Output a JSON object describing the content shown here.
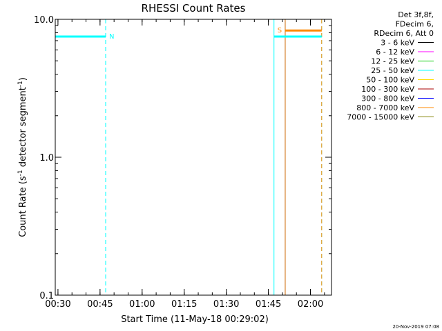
{
  "chart_data": {
    "type": "line",
    "title": "RHESSI Count Rates",
    "xlabel": "Start Time (11-May-18 00:29:02)",
    "ylabel_parts": [
      "Count Rate (s",
      "-1",
      " detector segment",
      "-1",
      ")"
    ],
    "yscale": "log",
    "ylim": [
      0.1,
      10.0
    ],
    "xlim": [
      "00:29:02",
      "02:07:30"
    ],
    "x_ticks": [
      "00:30",
      "00:45",
      "01:00",
      "01:15",
      "01:30",
      "01:45",
      "02:00"
    ],
    "y_ticks": [
      "10.0",
      "1.0",
      "0.1"
    ],
    "legend_position": "top-right",
    "legend_header": [
      "Det 3f,8f,",
      "FDecim 6,",
      "RDecim 6, Att 0"
    ],
    "series": [
      {
        "name": "3 - 6 keV",
        "color": "#000000",
        "segments": []
      },
      {
        "name": "6 - 12 keV",
        "color": "#ff00ff",
        "segments": []
      },
      {
        "name": "12 - 25 keV",
        "color": "#00cc00",
        "segments": []
      },
      {
        "name": "25 - 50 keV",
        "color": "#00ffff",
        "segments": [
          {
            "x": [
              "00:29:02",
              "00:47:00"
            ],
            "y": [
              7.5,
              7.5
            ]
          },
          {
            "x": [
              "01:47:00",
              "02:04:00"
            ],
            "y": [
              7.5,
              7.5
            ]
          }
        ]
      },
      {
        "name": "50 - 100 keV",
        "color": "#ffdd00",
        "segments": []
      },
      {
        "name": "100 - 300 keV",
        "color": "#aa0000",
        "segments": []
      },
      {
        "name": "300 - 800 keV",
        "color": "#0000ff",
        "segments": []
      },
      {
        "name": "800 - 7000 keV",
        "color": "#ff8800",
        "segments": [
          {
            "x": [
              "01:51:00",
              "02:04:00"
            ],
            "y": [
              8.3,
              8.3
            ]
          }
        ]
      },
      {
        "name": "7000 - 15000 keV",
        "color": "#808000",
        "segments": []
      }
    ],
    "vlines": [
      {
        "x": "00:29:02",
        "color": "#00ffff",
        "style": "solid"
      },
      {
        "x": "00:47:00",
        "color": "#00ffff",
        "style": "dashed"
      },
      {
        "x": "01:47:00",
        "color": "#00ffff",
        "style": "solid"
      },
      {
        "x": "02:04:00",
        "color": "#00ffff",
        "style": "dashed"
      },
      {
        "x": "01:51:00",
        "color": "#cc6600",
        "style": "solid"
      },
      {
        "x": "02:04:00",
        "color": "#ff8800",
        "style": "dashed"
      }
    ],
    "annotations": [
      {
        "text": "N",
        "color": "#00ffff",
        "x": "00:47:00",
        "y": 7.5
      },
      {
        "text": "S",
        "color": "#ff8800",
        "x": "01:47:00",
        "y": 8.3
      }
    ]
  },
  "footer": {
    "timestamp": "20-Nov-2019 07:08"
  }
}
